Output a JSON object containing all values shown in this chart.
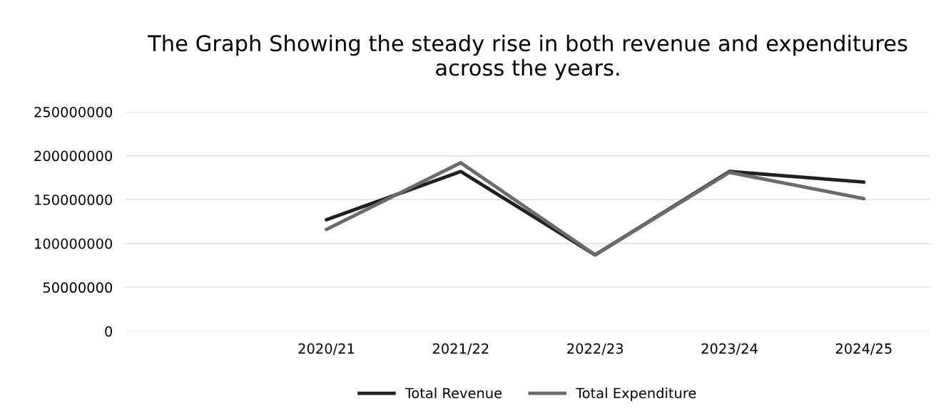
{
  "chart_data": {
    "type": "line",
    "title": "The Graph Showing the steady rise in both revenue and expenditures across the years.",
    "categories": [
      null,
      "2020/21",
      "2021/22",
      "2022/23",
      "2023/24",
      "2024/25"
    ],
    "series": [
      {
        "name": "Total Revenue",
        "color": "#1f1f24",
        "values": [
          null,
          127000000,
          182000000,
          87000000,
          182000000,
          170000000
        ]
      },
      {
        "name": "Total Expenditure",
        "color": "#6a6a70",
        "values": [
          null,
          116000000,
          192000000,
          87000000,
          181000000,
          151000000
        ]
      }
    ],
    "ylim": [
      0,
      250000000
    ],
    "yticks": [
      0,
      50000000,
      100000000,
      150000000,
      200000000,
      250000000
    ],
    "grid": "y",
    "legend": "bottom",
    "marker": "none",
    "line_style": "solid"
  }
}
